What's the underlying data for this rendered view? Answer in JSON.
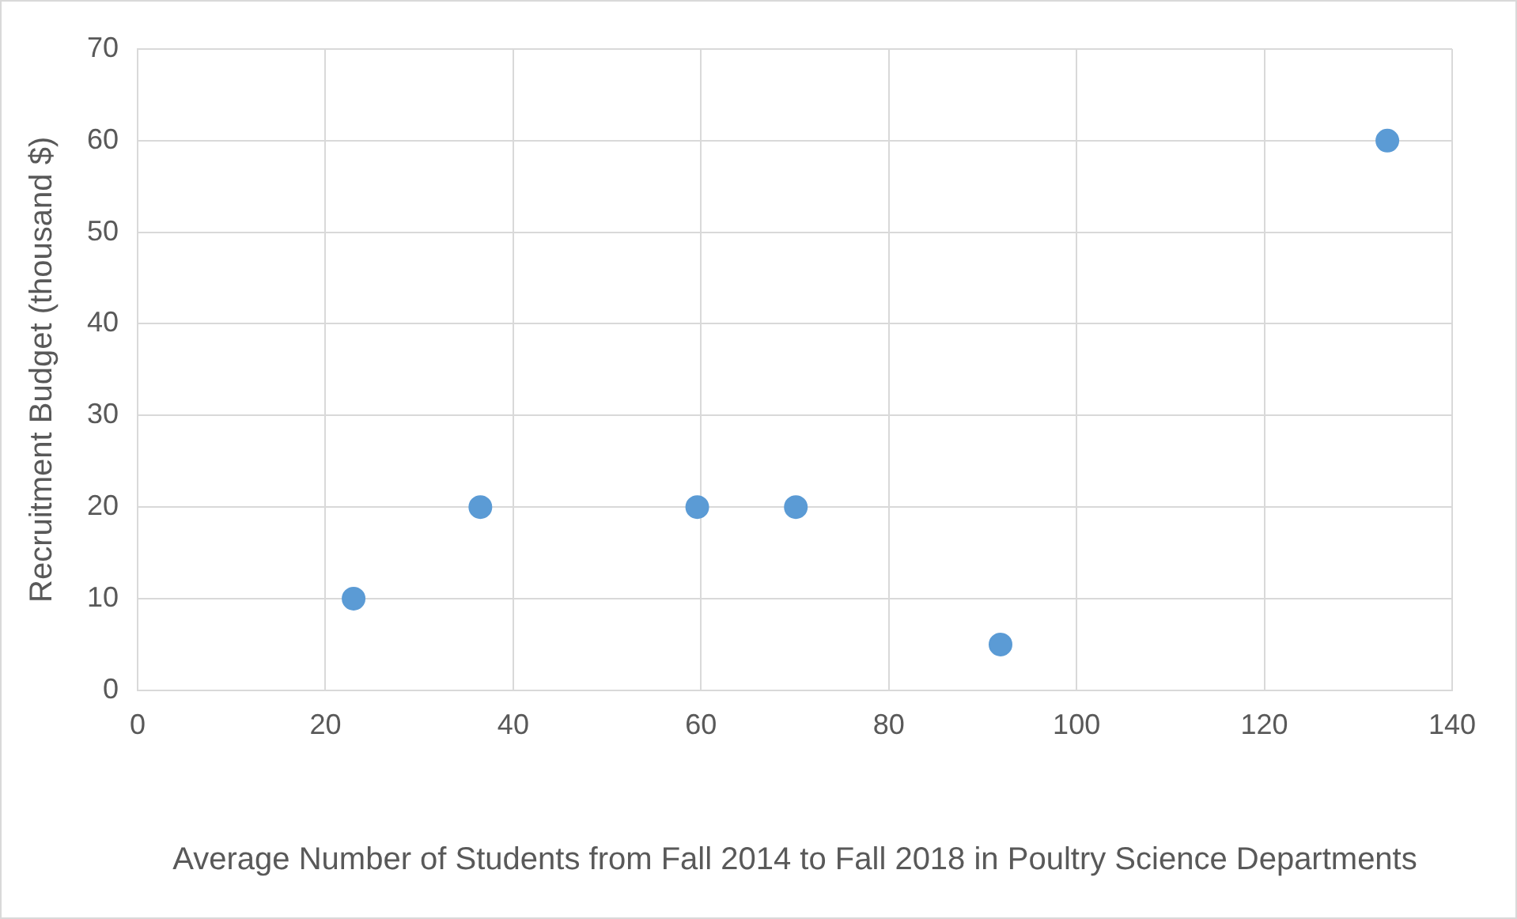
{
  "chart_data": {
    "type": "scatter",
    "xlabel": "Average Number of Students from Fall 2014 to Fall 2018 in Poultry Science Departments",
    "ylabel": "Recruitment Budget (thousand $)",
    "x": [
      23,
      36.5,
      59.6,
      70.1,
      91.9,
      133.1
    ],
    "values": [
      10,
      20,
      20,
      20,
      5,
      60
    ],
    "color": "#5b9bd5",
    "marker": "circle",
    "xlim": [
      0,
      140
    ],
    "xticks": [
      0,
      20,
      40,
      60,
      80,
      100,
      120,
      140
    ],
    "ylim": [
      0,
      70
    ],
    "yticks": [
      0,
      10,
      20,
      30,
      40,
      50,
      60,
      70
    ],
    "grid": true
  }
}
